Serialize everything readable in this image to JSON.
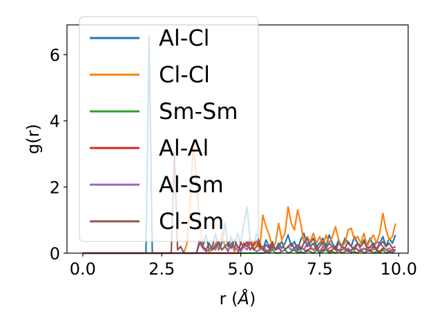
{
  "chart_data": {
    "type": "line",
    "title": "",
    "xlabel": "r (",
    "xlabel_symbol": "Å",
    "xlabel_suffix": ")",
    "ylabel": "g(r)",
    "xlim": [
      -0.5,
      10.3
    ],
    "ylim": [
      0,
      6.9
    ],
    "xticks": [
      0.0,
      2.5,
      5.0,
      7.5,
      10.0
    ],
    "xtick_labels": [
      "0.0",
      "2.5",
      "5.0",
      "7.5",
      "10.0"
    ],
    "yticks": [
      0,
      2,
      4,
      6
    ],
    "ytick_labels": [
      "0",
      "2",
      "4",
      "6"
    ],
    "grid": false,
    "legend_position": "upper-left",
    "x": [
      0.0,
      0.1,
      0.2,
      0.3,
      0.4,
      0.5,
      0.6,
      0.7,
      0.8,
      0.9,
      1.0,
      1.1,
      1.2,
      1.3,
      1.4,
      1.5,
      1.6,
      1.7,
      1.8,
      1.9,
      2.0,
      2.1,
      2.2,
      2.3,
      2.4,
      2.5,
      2.6,
      2.7,
      2.8,
      2.9,
      3.0,
      3.1,
      3.2,
      3.3,
      3.4,
      3.5,
      3.6,
      3.7,
      3.8,
      3.9,
      4.0,
      4.1,
      4.2,
      4.3,
      4.4,
      4.5,
      4.6,
      4.7,
      4.8,
      4.9,
      5.0,
      5.1,
      5.2,
      5.3,
      5.4,
      5.5,
      5.6,
      5.7,
      5.8,
      5.9,
      6.0,
      6.1,
      6.2,
      6.3,
      6.4,
      6.5,
      6.6,
      6.7,
      6.8,
      6.9,
      7.0,
      7.1,
      7.2,
      7.3,
      7.4,
      7.5,
      7.6,
      7.7,
      7.8,
      7.9,
      8.0,
      8.1,
      8.2,
      8.3,
      8.4,
      8.5,
      8.6,
      8.7,
      8.8,
      8.9,
      9.0,
      9.1,
      9.2,
      9.3,
      9.4,
      9.5,
      9.6,
      9.7,
      9.8,
      9.9
    ],
    "series": [
      {
        "name": "Al-Cl",
        "color": "#1f77b4",
        "values": [
          0,
          0,
          0,
          0,
          0,
          0,
          0,
          0,
          0,
          0,
          0,
          0,
          0,
          0,
          0,
          0,
          0,
          0,
          0,
          0,
          0,
          6.55,
          0,
          0,
          0,
          0,
          0,
          0,
          0,
          0,
          0,
          0,
          0,
          0,
          0,
          0,
          0,
          0.35,
          0.2,
          0.55,
          0.1,
          0.2,
          0.6,
          0.1,
          0.3,
          0.9,
          0.2,
          0.5,
          0.1,
          0.6,
          0.3,
          0.9,
          1.4,
          0.4,
          0.2,
          0.6,
          0.3,
          0.1,
          0.4,
          0.2,
          0.35,
          0.1,
          0.3,
          0.15,
          0.3,
          0.55,
          0.2,
          0.35,
          0.1,
          0.4,
          0.6,
          0.2,
          0.3,
          0.45,
          0.2,
          0.3,
          0.45,
          0.2,
          0.55,
          0.3,
          0.15,
          0.4,
          0.2,
          0.45,
          0.3,
          0.2,
          0.5,
          0.3,
          0.2,
          0.4,
          0.25,
          0.45,
          0.2,
          0.35,
          0.3,
          0.5,
          0.2,
          0.45,
          0.3,
          0.55
        ]
      },
      {
        "name": "Cl-Cl",
        "color": "#ff7f0e",
        "values": [
          0,
          0,
          0,
          0,
          0,
          0,
          0,
          0,
          0,
          0,
          0,
          0,
          0,
          0,
          0,
          0,
          0,
          0,
          0,
          0,
          0,
          0,
          0,
          0,
          0,
          0,
          0,
          0,
          0,
          0,
          0,
          0,
          0,
          0.3,
          1.5,
          3.35,
          2.2,
          0.9,
          0.2,
          0.1,
          0.05,
          0.1,
          0.3,
          0.15,
          0.6,
          0.2,
          0.1,
          0.3,
          0.05,
          0.2,
          0.1,
          0.2,
          0.3,
          0.5,
          0.2,
          0.3,
          0.1,
          1.15,
          0.8,
          0.55,
          0.2,
          0.3,
          0.9,
          0.4,
          0.6,
          1.4,
          0.9,
          0.7,
          1.3,
          0.9,
          0.3,
          0.5,
          0.35,
          0.6,
          0.3,
          0.5,
          0.2,
          0.55,
          0.3,
          0.5,
          0.8,
          0.4,
          0.2,
          0.3,
          0.7,
          0.75,
          0.4,
          0.5,
          0.3,
          0.6,
          0.2,
          0.4,
          0.55,
          0.3,
          0.6,
          1.2,
          0.7,
          0.4,
          0.5,
          0.9
        ]
      },
      {
        "name": "Sm-Sm",
        "color": "#2ca02c",
        "values": [
          0,
          0,
          0,
          0,
          0,
          0,
          0,
          0,
          0,
          0,
          0,
          0,
          0,
          0,
          0,
          0,
          0,
          0,
          0,
          0,
          0,
          0,
          0,
          0,
          0,
          0,
          0,
          0,
          0,
          0,
          0,
          0,
          0,
          0,
          0,
          0,
          0,
          0,
          0,
          0,
          0,
          0,
          0,
          0,
          0,
          0,
          0,
          0,
          0,
          0,
          0,
          0,
          0,
          0,
          0,
          0,
          0,
          0,
          0.05,
          0,
          0.1,
          0,
          0,
          0.05,
          0.1,
          0,
          0.05,
          0.1,
          0,
          0.05,
          0,
          0.1,
          0.05,
          0,
          0.1,
          0,
          0.05,
          0.1,
          0,
          0.05,
          0,
          0.1,
          0,
          0.05,
          0.1,
          0,
          0.05,
          0,
          0.1,
          0,
          0.05,
          0.1,
          0,
          0.05,
          0,
          0.1,
          0,
          0.05,
          0,
          0.1
        ]
      },
      {
        "name": "Al-Al",
        "color": "#d62728",
        "values": [
          0,
          0,
          0,
          0,
          0,
          0,
          0,
          0,
          0,
          0,
          0,
          0,
          0,
          0,
          0,
          0,
          0,
          0,
          0,
          0,
          0,
          0,
          0,
          0,
          0,
          0,
          0,
          0,
          0,
          0,
          0,
          0,
          0,
          0,
          0,
          0,
          0,
          0,
          0,
          0,
          0,
          0,
          0,
          0,
          0,
          0,
          0,
          0,
          0,
          0,
          0.3,
          0.2,
          0.35,
          0.1,
          0.25,
          0.4,
          0.2,
          0.1,
          0.05,
          0.1,
          0.2,
          0.1,
          0.15,
          0.05,
          0.1,
          0.2,
          0.1,
          0.15,
          0.05,
          0.2,
          0.1,
          0.05,
          0.15,
          0.1,
          0.2,
          0.05,
          0.1,
          0.15,
          0.05,
          0.1,
          0.2,
          0.05,
          0.1,
          0.15,
          0.05,
          0.1,
          0.2,
          0.1,
          0.05,
          0.15,
          0.1,
          0.05,
          0.2,
          0.1,
          0.05,
          0.15,
          0.1,
          0.05,
          0.1,
          0.1
        ]
      },
      {
        "name": "Al-Sm",
        "color": "#9467bd",
        "values": [
          0,
          0,
          0,
          0,
          0,
          0,
          0,
          0,
          0,
          0,
          0,
          0,
          0,
          0,
          0,
          0,
          0,
          0,
          0,
          0,
          0,
          0,
          0,
          0,
          0,
          0,
          0,
          0,
          0,
          0,
          0,
          0,
          0,
          0,
          0,
          0,
          0,
          0.3,
          0.15,
          0.05,
          0.1,
          0.2,
          0.1,
          0.3,
          0.1,
          0.2,
          0.05,
          0.3,
          0.15,
          0.1,
          0.05,
          0.2,
          0.1,
          0.3,
          0.15,
          0.05,
          0.1,
          0.2,
          0.1,
          0.05,
          0.15,
          0.1,
          0.2,
          0.05,
          0.1,
          0.2,
          0.1,
          0.15,
          0.05,
          0.2,
          0.1,
          0.3,
          0.2,
          0.1,
          0.15,
          0.05,
          0.2,
          0.1,
          0.15,
          0.2,
          0.1,
          0.05,
          0.2,
          0.1,
          0.15,
          0.05,
          0.2,
          0.3,
          0.1,
          0.15,
          0.05,
          0.2,
          0.1,
          0.15,
          0.3,
          0.2,
          0.1,
          0.15,
          0.05,
          0.1
        ]
      },
      {
        "name": "Cl-Sm",
        "color": "#8c564b",
        "values": [
          0,
          0,
          0,
          0,
          0,
          0,
          0,
          0,
          0,
          0,
          0,
          0,
          0,
          0,
          0,
          0,
          0,
          0,
          0,
          0,
          0,
          0,
          0,
          0,
          0,
          0,
          0,
          0,
          0,
          3.05,
          0.1,
          0.2,
          0,
          0,
          0,
          0,
          0,
          0.4,
          0.2,
          0.1,
          0.3,
          0.1,
          0.2,
          0.35,
          0.1,
          0.2,
          0.3,
          0.15,
          0.4,
          0.2,
          0.1,
          0.3,
          0.2,
          0.4,
          0.1,
          0.2,
          0.3,
          0.1,
          0.25,
          0.15,
          0.3,
          0.1,
          0.2,
          0.35,
          0.1,
          0.2,
          0.3,
          0.15,
          0.25,
          0.1,
          0.3,
          0.45,
          0.2,
          0.3,
          0.1,
          0.2,
          0.35,
          0.15,
          0.3,
          0.2,
          0.1,
          0.3,
          0.2,
          0.15,
          0.35,
          0.2,
          0.1,
          0.3,
          0.2,
          0.35,
          0.15,
          0.2,
          0.3,
          0.1,
          0.25,
          0.35,
          0.2,
          0.3,
          0.15,
          0.2
        ]
      }
    ]
  }
}
